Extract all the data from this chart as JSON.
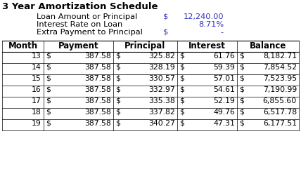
{
  "title": "3 Year Amortization Schedule",
  "info_rows": [
    {
      "label": "Loan Amount or Principal",
      "dollar": "$",
      "value": "12,240.00"
    },
    {
      "label": "Interest Rate on Loan",
      "dollar": "",
      "value": "8.71%"
    },
    {
      "label": "Extra Payment to Principal",
      "dollar": "$",
      "value": "-"
    }
  ],
  "col_headers": [
    "Month",
    "Payment",
    "Principal",
    "Interest",
    "Balance"
  ],
  "rows": [
    [
      "13",
      "387.58",
      "325.82",
      "61.76",
      "8,182.71"
    ],
    [
      "14",
      "387.58",
      "328.19",
      "59.39",
      "7,854.52"
    ],
    [
      "15",
      "387.58",
      "330.57",
      "57.01",
      "7,523.95"
    ],
    [
      "16",
      "387.58",
      "332.97",
      "54.61",
      "7,190.99"
    ],
    [
      "17",
      "387.58",
      "335.38",
      "52.19",
      "6,855.60"
    ],
    [
      "18",
      "387.58",
      "337.82",
      "49.76",
      "6,517.78"
    ],
    [
      "19",
      "387.58",
      "340.27",
      "47.31",
      "6,177.51"
    ]
  ],
  "bg_color": "#ffffff",
  "black": "#000000",
  "blue": "#3333bb",
  "title_fs": 9.5,
  "info_fs": 8.2,
  "hdr_fs": 8.5,
  "cell_fs": 7.8,
  "fig_w": 4.28,
  "fig_h": 2.41,
  "dpi": 100
}
